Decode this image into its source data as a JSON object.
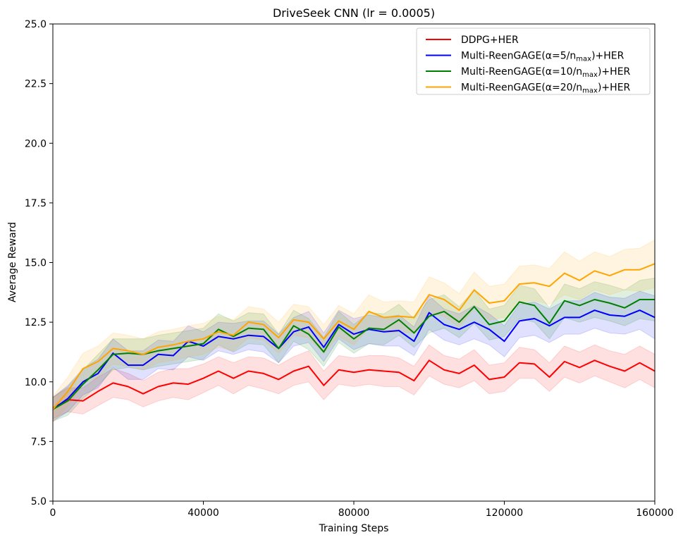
{
  "chart_data": {
    "type": "line",
    "title": "DriveSeek CNN (lr = 0.0005)",
    "xlabel": "Training Steps",
    "ylabel": "Average Reward",
    "xlim": [
      0,
      160000
    ],
    "ylim": [
      5.0,
      25.0
    ],
    "xticks": [
      0,
      40000,
      80000,
      120000,
      160000
    ],
    "xtick_labels": [
      "0",
      "40000",
      "80000",
      "120000",
      "160000"
    ],
    "yticks": [
      5.0,
      7.5,
      10.0,
      12.5,
      15.0,
      17.5,
      20.0,
      22.5,
      25.0
    ],
    "ytick_labels": [
      "5.0",
      "7.5",
      "10.0",
      "12.5",
      "15.0",
      "17.5",
      "20.0",
      "22.5",
      "25.0"
    ],
    "legend_position": "top-right",
    "grid": false,
    "x": [
      0,
      4000,
      8000,
      12000,
      16000,
      20000,
      24000,
      28000,
      32000,
      36000,
      40000,
      44000,
      48000,
      52000,
      56000,
      60000,
      64000,
      68000,
      72000,
      76000,
      80000,
      84000,
      88000,
      92000,
      96000,
      100000,
      104000,
      108000,
      112000,
      116000,
      120000,
      124000,
      128000,
      132000,
      136000,
      140000,
      144000,
      148000,
      152000,
      156000,
      160000
    ],
    "series": [
      {
        "name": "DDPG+HER",
        "color": "#ff0000",
        "values": [
          8.9,
          9.25,
          9.2,
          9.6,
          9.95,
          9.8,
          9.5,
          9.8,
          9.95,
          9.9,
          10.15,
          10.45,
          10.15,
          10.45,
          10.35,
          10.1,
          10.45,
          10.65,
          9.85,
          10.5,
          10.4,
          10.5,
          10.45,
          10.4,
          10.05,
          10.9,
          10.5,
          10.35,
          10.7,
          10.1,
          10.2,
          10.8,
          10.75,
          10.2,
          10.85,
          10.6,
          10.9,
          10.65,
          10.45,
          10.8,
          10.45
        ],
        "band": [
          0.45,
          0.5,
          0.55,
          0.6,
          0.6,
          0.55,
          0.55,
          0.6,
          0.6,
          0.65,
          0.6,
          0.6,
          0.65,
          0.6,
          0.65,
          0.6,
          0.6,
          0.65,
          0.6,
          0.6,
          0.6,
          0.6,
          0.65,
          0.6,
          0.6,
          0.65,
          0.6,
          0.6,
          0.65,
          0.6,
          0.6,
          0.65,
          0.6,
          0.6,
          0.65,
          0.65,
          0.65,
          0.65,
          0.7,
          0.7,
          0.7
        ]
      },
      {
        "name": "Multi-ReenGAGE(α=5/nmax)+HER",
        "color": "#0000ff",
        "values": [
          8.85,
          9.3,
          10.0,
          10.35,
          11.2,
          10.7,
          10.7,
          11.15,
          11.1,
          11.7,
          11.5,
          11.9,
          11.8,
          11.95,
          11.9,
          11.4,
          12.1,
          12.3,
          11.45,
          12.4,
          12.0,
          12.2,
          12.1,
          12.15,
          11.7,
          12.9,
          12.4,
          12.2,
          12.5,
          12.2,
          11.7,
          12.55,
          12.65,
          12.35,
          12.7,
          12.7,
          13.0,
          12.8,
          12.75,
          13.0,
          12.7
        ],
        "band": [
          0.5,
          0.55,
          0.55,
          0.6,
          0.6,
          0.6,
          0.6,
          0.6,
          0.6,
          0.65,
          0.6,
          0.6,
          0.65,
          0.6,
          0.65,
          0.6,
          0.6,
          0.65,
          0.6,
          0.6,
          0.65,
          0.6,
          0.6,
          0.65,
          0.6,
          0.7,
          0.65,
          0.65,
          0.7,
          0.65,
          0.65,
          0.7,
          0.7,
          0.7,
          0.7,
          0.7,
          0.75,
          0.75,
          0.75,
          0.8,
          0.9
        ]
      },
      {
        "name": "Multi-ReenGAGE(α=10/nmax)+HER",
        "color": "#008000",
        "values": [
          8.85,
          9.2,
          9.9,
          10.5,
          11.15,
          11.2,
          11.15,
          11.3,
          11.4,
          11.5,
          11.6,
          12.2,
          11.9,
          12.25,
          12.2,
          11.4,
          12.35,
          12.0,
          11.25,
          12.3,
          11.8,
          12.25,
          12.2,
          12.6,
          12.05,
          12.75,
          12.95,
          12.5,
          13.15,
          12.4,
          12.55,
          13.35,
          13.2,
          12.45,
          13.4,
          13.2,
          13.45,
          13.3,
          13.1,
          13.45,
          13.45
        ],
        "band": [
          0.5,
          0.6,
          0.6,
          0.65,
          0.65,
          0.6,
          0.65,
          0.65,
          0.65,
          0.65,
          0.65,
          0.65,
          0.65,
          0.65,
          0.65,
          0.6,
          0.65,
          0.65,
          0.6,
          0.65,
          0.6,
          0.65,
          0.65,
          0.65,
          0.6,
          0.7,
          0.7,
          0.65,
          0.7,
          0.65,
          0.65,
          0.7,
          0.7,
          0.65,
          0.7,
          0.7,
          0.75,
          0.75,
          0.75,
          0.8,
          0.9
        ]
      },
      {
        "name": "Multi-ReenGAGE(α=20/nmax)+HER",
        "color": "#ffa500",
        "values": [
          8.85,
          9.6,
          10.55,
          10.85,
          11.4,
          11.3,
          11.15,
          11.45,
          11.55,
          11.7,
          11.8,
          12.1,
          11.95,
          12.5,
          12.4,
          11.85,
          12.6,
          12.5,
          11.8,
          12.55,
          12.2,
          12.95,
          12.7,
          12.75,
          12.7,
          13.65,
          13.45,
          13.0,
          13.85,
          13.3,
          13.4,
          14.1,
          14.15,
          14.0,
          14.55,
          14.25,
          14.65,
          14.45,
          14.7,
          14.7,
          14.95
        ],
        "band": [
          0.55,
          0.6,
          0.65,
          0.65,
          0.65,
          0.65,
          0.65,
          0.65,
          0.65,
          0.65,
          0.65,
          0.65,
          0.65,
          0.65,
          0.65,
          0.65,
          0.65,
          0.65,
          0.6,
          0.65,
          0.65,
          0.7,
          0.65,
          0.65,
          0.65,
          0.75,
          0.7,
          0.7,
          0.75,
          0.7,
          0.7,
          0.75,
          0.75,
          0.75,
          0.9,
          0.8,
          0.8,
          0.8,
          0.85,
          0.9,
          1.0
        ]
      }
    ],
    "legend": [
      {
        "main": "DDPG+HER",
        "sub": "",
        "tail": ""
      },
      {
        "main": "Multi-ReenGAGE(α=5/n",
        "sub": "max",
        "tail": ")+HER"
      },
      {
        "main": "Multi-ReenGAGE(α=10/n",
        "sub": "max",
        "tail": ")+HER"
      },
      {
        "main": "Multi-ReenGAGE(α=20/n",
        "sub": "max",
        "tail": ")+HER"
      }
    ]
  }
}
